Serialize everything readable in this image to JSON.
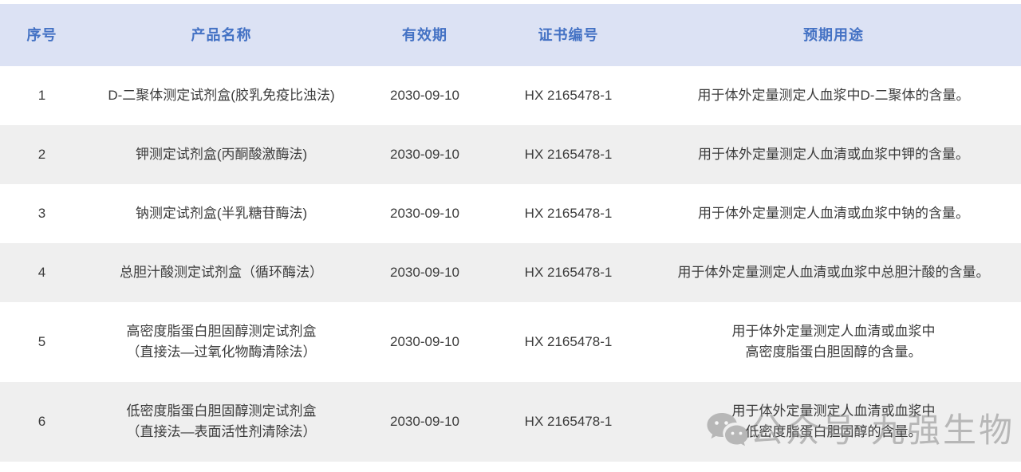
{
  "table": {
    "columns": [
      {
        "label": "序号"
      },
      {
        "label": "产品名称"
      },
      {
        "label": "有效期"
      },
      {
        "label": "证书编号"
      },
      {
        "label": "预期用途"
      }
    ],
    "rows": [
      {
        "index": "1",
        "name": [
          "D-二聚体测定试剂盒(胶乳免疫比浊法)"
        ],
        "validity": "2030-09-10",
        "cert": "HX 2165478-1",
        "usage": [
          "用于体外定量测定人血浆中D-二聚体的含量。"
        ]
      },
      {
        "index": "2",
        "name": [
          "钾测定试剂盒(丙酮酸激酶法)"
        ],
        "validity": "2030-09-10",
        "cert": "HX 2165478-1",
        "usage": [
          "用于体外定量测定人血清或血浆中钾的含量。"
        ]
      },
      {
        "index": "3",
        "name": [
          "钠测定试剂盒(半乳糖苷酶法)"
        ],
        "validity": "2030-09-10",
        "cert": "HX 2165478-1",
        "usage": [
          "用于体外定量测定人血清或血浆中钠的含量。"
        ]
      },
      {
        "index": "4",
        "name": [
          "总胆汁酸测定试剂盒（循环酶法）"
        ],
        "validity": "2030-09-10",
        "cert": "HX 2165478-1",
        "usage": [
          "用于体外定量测定人血清或血浆中总胆汁酸的含量。"
        ]
      },
      {
        "index": "5",
        "name": [
          "高密度脂蛋白胆固醇测定试剂盒",
          "（直接法—过氧化物酶清除法）"
        ],
        "validity": "2030-09-10",
        "cert": "HX 2165478-1",
        "usage": [
          "用于体外定量测定人血清或血浆中",
          "高密度脂蛋白胆固醇的含量。"
        ]
      },
      {
        "index": "6",
        "name": [
          "低密度脂蛋白胆固醇测定试剂盒",
          "（直接法—表面活性剂清除法）"
        ],
        "validity": "2030-09-10",
        "cert": "HX 2165478-1",
        "usage": [
          "用于体外定量测定人血清或血浆中",
          "低密度脂蛋白胆固醇的含量。"
        ]
      }
    ]
  },
  "watermark": {
    "icon": "wechat-icon",
    "text": "公众号·九强生物"
  },
  "colors": {
    "header_bg": "#dce2f4",
    "header_text": "#4472c4",
    "row_alt_bg": "#efefef",
    "body_text": "#3b3b3b",
    "watermark": "#8a8a8a"
  }
}
